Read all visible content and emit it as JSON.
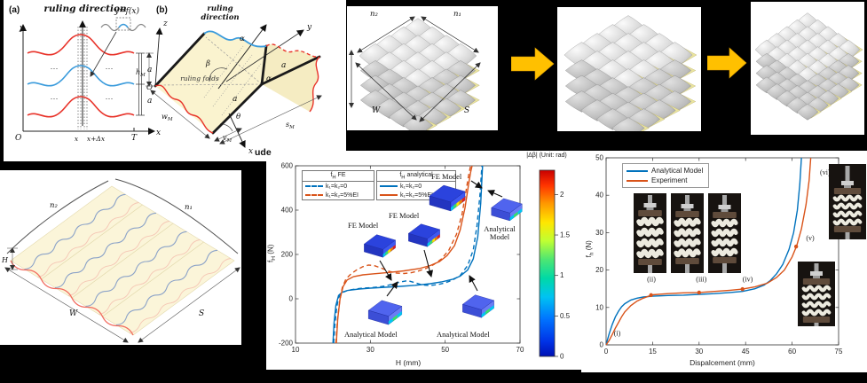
{
  "fragment_ude": "ude",
  "panel_a": {
    "tag": "(a)",
    "title": "ruling direction",
    "inset_label": "y=f(x)",
    "y_axis": "y",
    "x_axis": "x",
    "origin": "O",
    "t_label": "T",
    "x_tick": "x",
    "x_dx_tick": "x+Δx",
    "a_upper": "a",
    "a_lower": "a",
    "dots": "⋯"
  },
  "panel_b": {
    "tag": "(b)",
    "title1": "ruling",
    "title2": "direction",
    "z_axis": "z",
    "y_axis": "y",
    "x_axis": "x",
    "origin": "O",
    "alpha_top": "α",
    "alpha_mid": "α",
    "beta": "β",
    "theta": "θ",
    "ruling_folds": "ruling folds",
    "a_right": "a",
    "a_front": "a",
    "h_base": "h",
    "h_sub": "M",
    "w_base": "w",
    "w_sub": "M",
    "v_base": "v",
    "v_sub": "M",
    "s_base": "s",
    "s_sub": "M"
  },
  "unit_cell_counts": {
    "n2": "n₂",
    "n1": "n₁",
    "W": "W",
    "S": "S"
  },
  "sheet_labels": {
    "n2": "n₂",
    "n1": "n₁",
    "H": "H",
    "W": "W",
    "S": "S"
  },
  "colors": {
    "blue": "#0072BD",
    "orange": "#D95319",
    "curve_red": "#E8332A",
    "curve_blue": "#3A9BDC",
    "arrow_yellow": "#FFC000",
    "face_yellow": "#FAF3CF",
    "cell_yellow": "#EAE49F"
  },
  "chart_data": [
    {
      "type": "line",
      "xlabel": "H (mm)",
      "ylabel": "f_H (N)",
      "ylabel_base": "f",
      "ylabel_sub": "H",
      "ylabel_unit": " (N)",
      "xlim": [
        10,
        70
      ],
      "ylim": [
        -200,
        600
      ],
      "xticks": [
        10,
        30,
        50,
        70
      ],
      "yticks": [
        -200,
        0,
        200,
        400,
        600
      ],
      "legend_boxes": [
        {
          "header_base": "f",
          "header_sub": "H",
          "header_rest": " FE",
          "rows": [
            {
              "label": "k₁=k₂=0",
              "color": "#0072BD",
              "dash": true
            },
            {
              "label": "k₁=k₂=5%EI",
              "color": "#D95319",
              "dash": true
            }
          ]
        },
        {
          "header_base": "f",
          "header_sub": "H",
          "header_rest": " analytical",
          "rows": [
            {
              "label": "k₁=k₂=0",
              "color": "#0072BD",
              "dash": false
            },
            {
              "label": "k₁=k₂=5%EI",
              "color": "#D95319",
              "dash": false
            }
          ]
        }
      ],
      "series": [
        {
          "name": "FE k₁=k₂=0",
          "color": "#0072BD",
          "dash": true,
          "x": [
            20.2,
            20.5,
            21,
            21.5,
            22.5,
            24,
            26,
            28,
            30,
            32,
            34,
            36,
            38,
            40,
            42,
            44,
            46,
            48,
            50,
            52,
            54,
            56,
            57.5,
            58.5,
            59.3,
            59.8
          ],
          "y": [
            -200,
            -120,
            -40,
            5,
            28,
            38,
            44,
            48,
            50,
            53,
            58,
            66,
            76,
            82,
            72,
            62,
            60,
            64,
            72,
            85,
            105,
            150,
            220,
            330,
            470,
            600
          ]
        },
        {
          "name": "FE k₁=k₂=5%EI",
          "color": "#D95319",
          "dash": true,
          "x": [
            20.8,
            21.2,
            21.8,
            22.5,
            23.5,
            25,
            26.5,
            28,
            29.5,
            31,
            33,
            35,
            37,
            39,
            41,
            43,
            45,
            47,
            49,
            51,
            53,
            54.5,
            55.5,
            56.3,
            56.8
          ],
          "y": [
            -200,
            -100,
            -10,
            50,
            90,
            115,
            132,
            145,
            152,
            150,
            138,
            124,
            116,
            114,
            118,
            126,
            138,
            155,
            180,
            220,
            290,
            380,
            480,
            560,
            600
          ]
        },
        {
          "name": "analytical k₁=k₂=0",
          "color": "#0072BD",
          "dash": false,
          "x": [
            20,
            20.3,
            20.8,
            21.5,
            22.5,
            24,
            27,
            30,
            34,
            38,
            42,
            46,
            49,
            52,
            54,
            56,
            57.5,
            58.7,
            59.5,
            60
          ],
          "y": [
            -200,
            -110,
            -30,
            15,
            30,
            38,
            44,
            48,
            52,
            56,
            61,
            68,
            76,
            88,
            102,
            130,
            180,
            280,
            430,
            600
          ]
        },
        {
          "name": "analytical k₁=k₂=5%EI",
          "color": "#D95319",
          "dash": false,
          "x": [
            20.9,
            21.3,
            21.9,
            22.7,
            23.8,
            25.5,
            28,
            31,
            35,
            39,
            43,
            46,
            48.5,
            50.5,
            52.5,
            54,
            55.3,
            56.2,
            56.8,
            57.2
          ],
          "y": [
            -200,
            -90,
            0,
            55,
            85,
            100,
            108,
            113,
            119,
            126,
            136,
            150,
            168,
            195,
            240,
            310,
            410,
            510,
            570,
            600
          ]
        }
      ],
      "annotations": [
        {
          "text": "FE Model"
        },
        {
          "text": "FE Model"
        },
        {
          "text": "FE Model"
        },
        {
          "text": "Analytical Model"
        },
        {
          "text": "Analytical Model"
        },
        {
          "text": "Analytical Model"
        }
      ],
      "colorbar": {
        "label": "|Δβ| (Unit: rad)",
        "ticks": [
          0,
          0.5,
          1,
          1.5,
          2
        ],
        "vmax": 2.3,
        "colormap": "jet"
      }
    },
    {
      "type": "line",
      "xlabel": "Dispalcement (mm)",
      "ylabel": "f_h (N)",
      "ylabel_base": "f",
      "ylabel_sub": "h",
      "ylabel_unit": " (N)",
      "xlim": [
        0,
        75
      ],
      "ylim": [
        0,
        50
      ],
      "xticks": [
        0,
        15,
        30,
        45,
        60,
        75
      ],
      "yticks": [
        0,
        10,
        20,
        30,
        40,
        50
      ],
      "legend": [
        {
          "label": "Analytical Model",
          "color": "#0072BD"
        },
        {
          "label": "Experiment",
          "color": "#D95319"
        }
      ],
      "series": [
        {
          "name": "Analytical Model",
          "color": "#0072BD",
          "dash": false,
          "x": [
            0,
            0.5,
            1,
            2,
            3,
            4,
            5,
            6,
            8,
            10,
            12,
            15,
            20,
            25,
            30,
            35,
            40,
            44,
            48,
            51,
            53,
            55,
            57,
            59,
            60.5,
            61.7,
            62.5,
            63
          ],
          "y": [
            0,
            1.5,
            3,
            5.5,
            7.5,
            9,
            10.2,
            11,
            12,
            12.5,
            12.8,
            13,
            13.2,
            13.3,
            13.5,
            13.7,
            14,
            14.3,
            15,
            16,
            17.2,
            19,
            21.5,
            25.5,
            30,
            36,
            43,
            50
          ]
        },
        {
          "name": "Experiment",
          "color": "#D95319",
          "dash": false,
          "x": [
            0,
            1,
            2,
            3,
            4,
            5,
            6,
            8,
            10,
            12,
            15,
            20,
            25,
            30,
            35,
            40,
            44,
            48,
            52,
            55,
            57.5,
            60,
            61.5,
            63,
            64.5,
            65.5,
            66
          ],
          "y": [
            0,
            1.2,
            2.8,
            4.5,
            6,
            7.5,
            8.8,
            10.5,
            11.7,
            12.5,
            13.4,
            13.7,
            13.9,
            14,
            14.3,
            14.6,
            14.9,
            15.5,
            16.5,
            18,
            20,
            23.5,
            26.5,
            31,
            37.5,
            44,
            50
          ]
        }
      ],
      "markers": {
        "color": "#D95319",
        "points": [
          [
            14.5,
            13.3
          ],
          [
            30,
            14
          ],
          [
            44,
            14.9
          ],
          [
            61.3,
            26.3
          ]
        ]
      },
      "stage_labels": [
        {
          "text": "(i)",
          "x": 2.5,
          "y": 2.5
        },
        {
          "text": "(ii)",
          "x": 13.2,
          "y": 17
        },
        {
          "text": "(iii)",
          "x": 29,
          "y": 17
        },
        {
          "text": "(iv)",
          "x": 44,
          "y": 17
        },
        {
          "text": "(v)",
          "x": 64.5,
          "y": 28
        },
        {
          "text": "(vi)",
          "x": 69,
          "y": 45.5
        }
      ]
    }
  ]
}
